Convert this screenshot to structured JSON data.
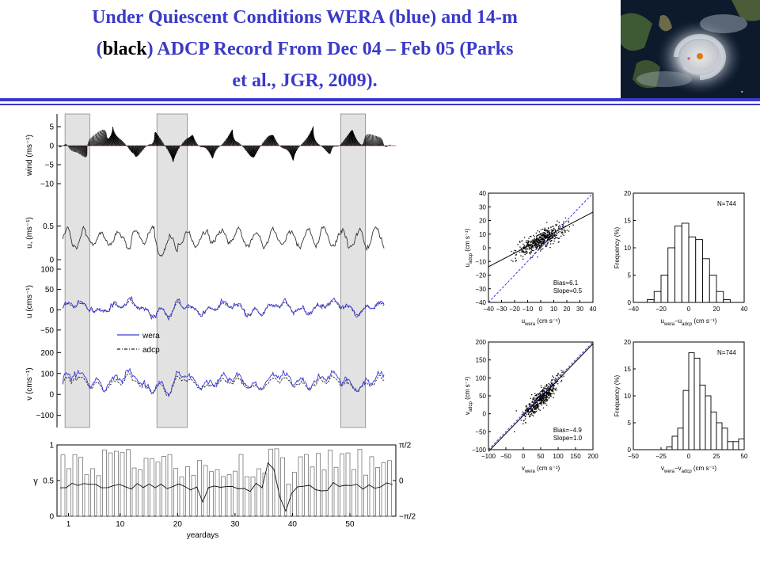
{
  "header": {
    "title_line1": "Under Quiescent Conditions WERA (blue) and 14-m",
    "title_line2_open": "(",
    "title_line2_black": "black",
    "title_line2_rest": ") ADCP Record From Dec 04 – Feb 05 (Parks",
    "title_line3": "et al., JGR,  2009).",
    "title_color": "#3a3ac8",
    "rule_color": "#3a3ac8"
  },
  "satellite_image": {
    "icon": "hurricane-satellite-photo-icon"
  },
  "chart_data": [
    {
      "type": "line",
      "panel": "wind",
      "description_source": "stick plot of wind vectors",
      "ylabel": "wind (ms⁻¹)",
      "yticks": [
        "5",
        "0",
        "−5",
        "−10"
      ],
      "ylim": [
        -10,
        5
      ],
      "xlim": [
        -1,
        58
      ]
    },
    {
      "type": "line",
      "panel": "u-speed",
      "ylabel": "u, (ms⁻¹)",
      "yticks": [
        "0.5",
        "0"
      ],
      "ylim": [
        0,
        0.8
      ],
      "series": [
        {
          "color": "#333333",
          "shape": "noisy current magnitude",
          "mean": 0.3
        }
      ]
    },
    {
      "type": "line",
      "panel": "u",
      "ylabel": "u (cms⁻¹)",
      "yticks": [
        "100",
        "50",
        "0",
        "−50"
      ],
      "ylim": [
        -60,
        100
      ],
      "legend": "inside-lower-left",
      "series": [
        {
          "name": "wera",
          "color": "#3a3ad8"
        },
        {
          "name": "adcp",
          "color": "#222222"
        }
      ]
    },
    {
      "type": "line",
      "panel": "v",
      "ylabel": "v (cms⁻¹)",
      "yticks": [
        "200",
        "100",
        "0",
        "−100"
      ],
      "ylim": [
        -120,
        220
      ],
      "series": [
        {
          "color": "#3a3ad8"
        },
        {
          "color": "#222222"
        }
      ]
    },
    {
      "type": "bar",
      "panel": "coherence",
      "ylabel": "γ",
      "yticks": [
        "1",
        "0.5",
        "0"
      ],
      "yticks_right": [
        "π/2",
        "0",
        "−π/2"
      ],
      "xlabel": "yeardays",
      "xticks": [
        "1",
        "10",
        "20",
        "30",
        "40",
        "50"
      ],
      "xtick_values": [
        1,
        10,
        20,
        30,
        40,
        50
      ],
      "xlim": [
        -1,
        58
      ],
      "ylim": [
        0,
        1
      ]
    },
    {
      "type": "scatter",
      "panel": "u-scatter",
      "xlabel": "u",
      "xlabel_sub": "wera",
      "xlabel_unit": "(cm s⁻¹)",
      "ylabel": "u",
      "ylabel_sub": "adcp",
      "ylabel_unit": "(cm s⁻¹)",
      "xlim": [
        -40,
        40
      ],
      "ylim": [
        -40,
        40
      ],
      "xticks": [
        "−40",
        "−30",
        "−20",
        "−10",
        "0",
        "10",
        "20",
        "30",
        "40"
      ],
      "yticks": [
        "40",
        "30",
        "20",
        "10",
        "0",
        "−10",
        "−20",
        "−30",
        "−40"
      ],
      "annotations": [
        "Bias=6.1",
        "Slope=0.5"
      ],
      "fit_slope": 0.5,
      "fit_bias": 6.1
    },
    {
      "type": "bar",
      "panel": "u-hist",
      "xlabel": "u",
      "xlabel_sub": "wera",
      "xlabel_mid": "−u",
      "xlabel_sub2": "adcp",
      "xlabel_unit": "(cm s⁻¹)",
      "ylabel": "Frequency (%)",
      "annotation": "N=744",
      "xlim": [
        -40,
        40
      ],
      "ylim": [
        0,
        20
      ],
      "xticks": [
        "−40",
        "−20",
        "0",
        "20",
        "40"
      ],
      "yticks": [
        "20",
        "15",
        "10",
        "5",
        "0"
      ],
      "bin_edges": [
        -30,
        -25,
        -20,
        -15,
        -10,
        -5,
        0,
        5,
        10,
        15,
        20,
        25,
        30
      ],
      "values": [
        0.5,
        2,
        5,
        10,
        14,
        14.5,
        12,
        11.5,
        8,
        5,
        2,
        0.5
      ]
    },
    {
      "type": "scatter",
      "panel": "v-scatter",
      "xlabel": "v",
      "xlabel_sub": "wera",
      "xlabel_unit": "(cm s⁻¹)",
      "ylabel": "v",
      "ylabel_sub": "adcp",
      "ylabel_unit": "(cm s⁻¹)",
      "xlim": [
        -100,
        200
      ],
      "ylim": [
        -100,
        200
      ],
      "xticks": [
        "−100",
        "−50",
        "0",
        "50",
        "100",
        "150",
        "200"
      ],
      "yticks": [
        "200",
        "150",
        "100",
        "50",
        "0",
        "−50",
        "−100"
      ],
      "annotations": [
        "Bias=−4.9",
        "Slope=1.0"
      ],
      "fit_slope": 1.0,
      "fit_bias": -4.9
    },
    {
      "type": "bar",
      "panel": "v-hist",
      "xlabel": "v",
      "xlabel_sub": "wera",
      "xlabel_mid": "−v",
      "xlabel_sub2": "adcp",
      "xlabel_unit": "(cm s⁻¹)",
      "ylabel": "Frequency (%)",
      "annotation": "N=744",
      "xlim": [
        -50,
        50
      ],
      "ylim": [
        0,
        20
      ],
      "xticks": [
        "−50",
        "−25",
        "0",
        "25",
        "50"
      ],
      "yticks": [
        "20",
        "15",
        "10",
        "5",
        "0"
      ],
      "bin_edges": [
        -20,
        -15,
        -10,
        -5,
        0,
        5,
        10,
        15,
        20,
        25,
        30,
        35,
        40,
        45,
        50
      ],
      "values": [
        0.5,
        2.5,
        4,
        11,
        18,
        17,
        12,
        10,
        7,
        5,
        4,
        1.5,
        1.5,
        2
      ]
    }
  ]
}
